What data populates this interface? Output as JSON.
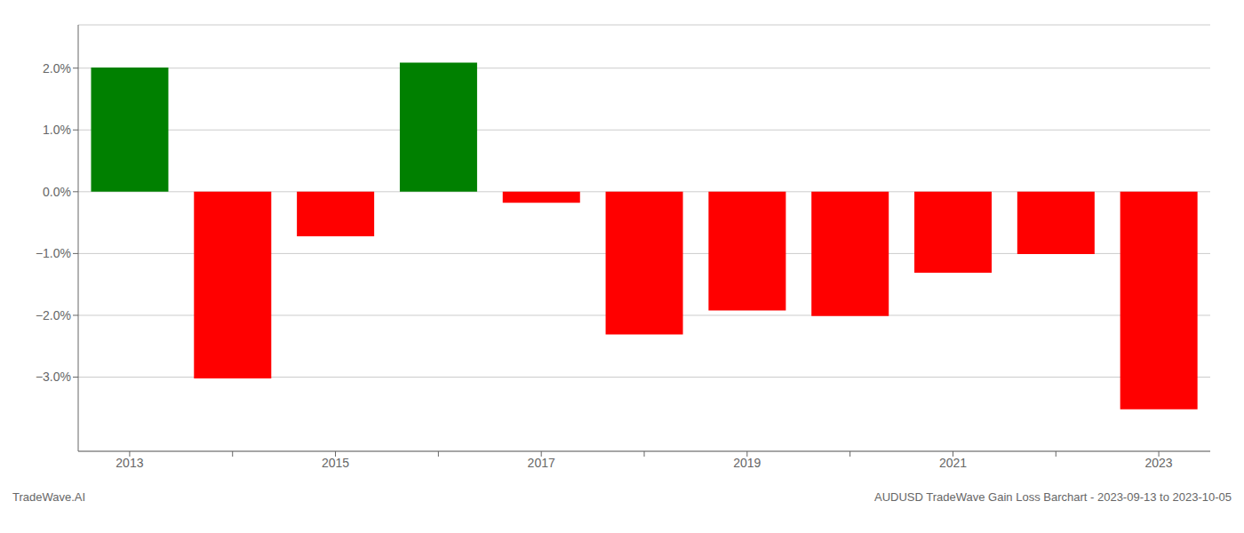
{
  "chart_data": {
    "type": "bar",
    "categories": [
      "2013",
      null,
      "2015",
      null,
      "2017",
      null,
      "2019",
      null,
      "2021",
      null,
      "2023"
    ],
    "values": [
      2.01,
      -3.02,
      -0.72,
      2.09,
      -0.18,
      -2.31,
      -1.92,
      -2.01,
      -1.31,
      -1.01,
      -3.52
    ],
    "colors": [
      "#008000",
      "#ff0000",
      "#ff0000",
      "#008000",
      "#ff0000",
      "#ff0000",
      "#ff0000",
      "#ff0000",
      "#ff0000",
      "#ff0000",
      "#ff0000"
    ],
    "ylim": [
      -4.2,
      2.7
    ],
    "yticks": [
      {
        "value": -3.0,
        "label": "−3.0%"
      },
      {
        "value": -2.0,
        "label": "−2.0%"
      },
      {
        "value": -1.0,
        "label": "−1.0%"
      },
      {
        "value": 0.0,
        "label": "0.0%"
      },
      {
        "value": 1.0,
        "label": "1.0%"
      },
      {
        "value": 2.0,
        "label": "2.0%"
      }
    ],
    "grid": true,
    "annotations": [
      "TradeWave.AI",
      "AUDUSD TradeWave Gain Loss Barchart - 2023-09-13 to 2023-10-05"
    ]
  }
}
